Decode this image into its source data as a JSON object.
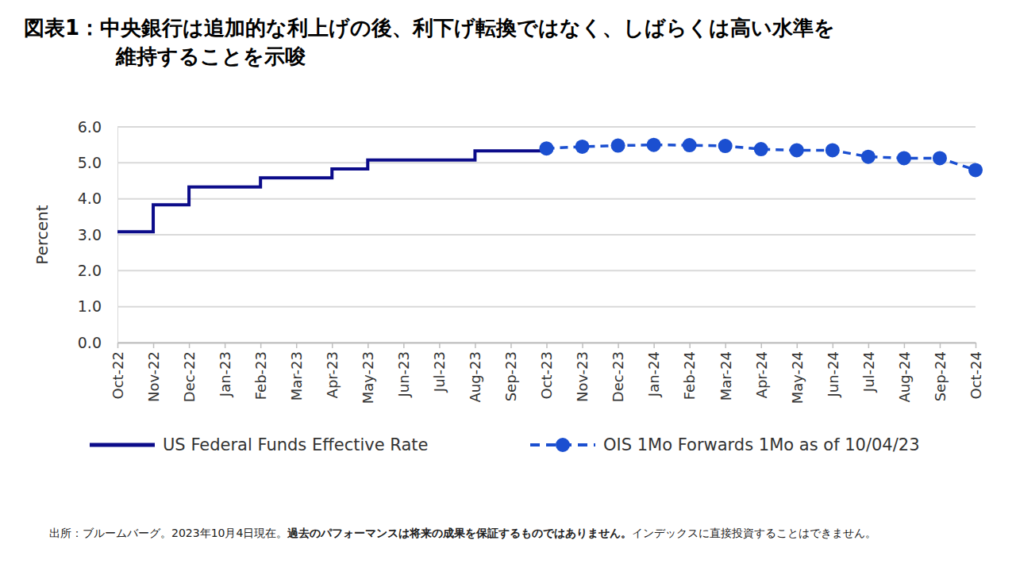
{
  "chart_data": {
    "type": "line",
    "title": [
      "図表1：中央銀行は追加的な利上げの後、利下げ転換ではなく、しばらくは高い水準を",
      "維持することを示唆"
    ],
    "y_label": "Percent",
    "categories": [
      "Oct-22",
      "Nov-22",
      "Dec-22",
      "Jan-23",
      "Feb-23",
      "Mar-23",
      "Apr-23",
      "May-23",
      "Jun-23",
      "Jul-23",
      "Aug-23",
      "Sep-23",
      "Oct-23",
      "Nov-23",
      "Dec-23",
      "Jan-24",
      "Feb-24",
      "Mar-24",
      "Apr-24",
      "May-24",
      "Jun-24",
      "Jul-24",
      "Aug-24",
      "Sep-24",
      "Oct-24"
    ],
    "series": [
      {
        "name": "US Federal Funds Effective Rate",
        "color": "#0c0c8a",
        "line_style": "step",
        "marker": "none",
        "values": [
          3.08,
          3.83,
          4.33,
          4.33,
          4.58,
          4.58,
          4.83,
          5.08,
          5.08,
          5.08,
          5.33,
          5.33,
          5.33,
          null,
          null,
          null,
          null,
          null,
          null,
          null,
          null,
          null,
          null,
          null,
          null
        ]
      },
      {
        "name": "OIS 1Mo Forwards 1Mo as of 10/04/23",
        "color": "#1b4fd0",
        "line_style": "dashed",
        "marker": "circle",
        "values": [
          null,
          null,
          null,
          null,
          null,
          null,
          null,
          null,
          null,
          null,
          null,
          null,
          5.4,
          5.45,
          5.48,
          5.5,
          5.49,
          5.47,
          5.38,
          5.35,
          5.35,
          5.17,
          5.13,
          5.13,
          4.8
        ]
      }
    ],
    "ylim": [
      0,
      6
    ],
    "yticks": [
      {
        "value": 0,
        "label": "0.0"
      },
      {
        "value": 1,
        "label": "1.0"
      },
      {
        "value": 2,
        "label": "2.0"
      },
      {
        "value": 3,
        "label": "3.0"
      },
      {
        "value": 4,
        "label": "4.0"
      },
      {
        "value": 5,
        "label": "5.0"
      },
      {
        "value": 6,
        "label": "6.0"
      }
    ],
    "grid": true,
    "legend": "bottom",
    "footnote": [
      "出所：ブルームバーグ。2023年10月4日現在。",
      "過去のパフォーマンスは将来の成果を保証するものではありません。",
      "インデックスに直接投資することはできません。"
    ]
  }
}
